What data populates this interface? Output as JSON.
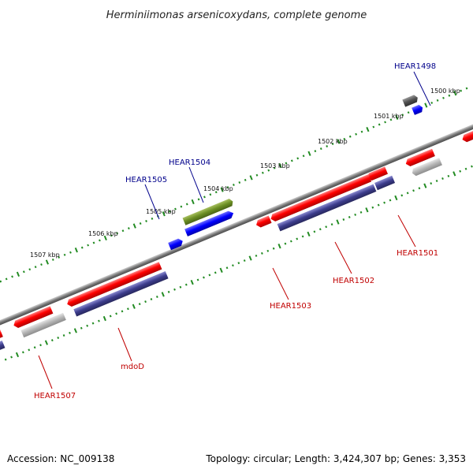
{
  "title": "Herminiimonas arsenicoxydans, complete genome",
  "footer": {
    "accession": "Accession: NC_009138",
    "summary": "Topology: circular; Length: 3,424,307 bp; Genes: 3,353"
  },
  "colors": {
    "red_gene": "#ff0000",
    "blue_gene": "#0000ff",
    "navy_gene": "#3c3c8c",
    "green_gene": "#6b8e23",
    "gray_gene": "#b4b4b4",
    "dark_gray_gene": "#505050",
    "backbone": "#808080",
    "tick": "#228b22",
    "top_label": "#00008b",
    "bottom_label": "#c00000"
  },
  "kbp_labels": [
    "1500 kbp",
    "1501 kbp",
    "1502 kbp",
    "1503 kbp",
    "1504 kbp",
    "1505 kbp",
    "1506 kbp",
    "1507 kbp"
  ],
  "top_gene_labels": [
    "HEAR1498",
    "HEAR1504",
    "HEAR1505"
  ],
  "bottom_gene_labels": [
    "HEAR1501",
    "HEAR1502",
    "HEAR1503",
    "mdoD",
    "HEAR1507"
  ]
}
